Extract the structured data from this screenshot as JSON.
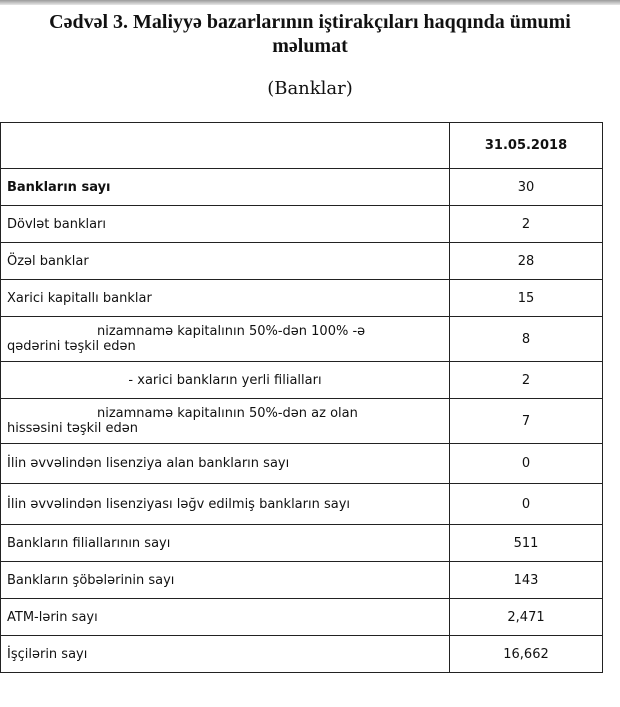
{
  "title_line1": "Cədvəl 3. Maliyyə bazarlarının iştirakçıları haqqında ümumi",
  "title_line2": "məlumat",
  "subtitle": "(Banklar)",
  "table": {
    "header_date": "31.05.2018",
    "rows": [
      {
        "label": "Bankların sayı",
        "value": "30"
      },
      {
        "label": "Dövlət bankları",
        "value": "2"
      },
      {
        "label": "Özəl banklar",
        "value": "28"
      },
      {
        "label": "Xarici kapitallı banklar",
        "value": "15"
      },
      {
        "label_a": "nizamnamə kapitalının 50%-dən 100% -ə",
        "label_b": "qədərini təşkil edən",
        "value": "8"
      },
      {
        "label": "-  xarici bankların yerli filialları",
        "value": "2"
      },
      {
        "label_a": "nizamnamə kapitalının 50%-dən az olan",
        "label_b": "hissəsini  təşkil edən",
        "value": "7"
      },
      {
        "label": "İlin əvvəlindən lisenziya alan bankların sayı",
        "value": "0"
      },
      {
        "label": "İlin əvvəlindən lisenziyası ləğv edilmiş bankların sayı",
        "value": "0"
      },
      {
        "label": "Bankların filiallarının sayı",
        "value": "511"
      },
      {
        "label": "Bankların şöbələrinin sayı",
        "value": "143"
      },
      {
        "label": "ATM-lərin sayı",
        "value": "2,471"
      },
      {
        "label": "İşçilərin sayı",
        "value": "16,662"
      }
    ]
  }
}
